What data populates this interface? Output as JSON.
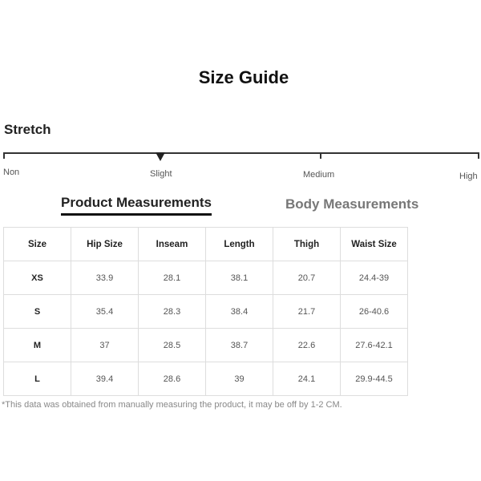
{
  "title": "Size Guide",
  "stretch": {
    "label": "Stretch",
    "levels": [
      "Non",
      "Slight",
      "Medium",
      "High"
    ],
    "selected": "Slight"
  },
  "tabs": {
    "product": "Product Measurements",
    "body": "Body Measurements",
    "active": "Product Measurements"
  },
  "table": {
    "headers": [
      "Size",
      "Hip Size",
      "Inseam",
      "Length",
      "Thigh",
      "Waist Size"
    ],
    "rows": [
      [
        "XS",
        "33.9",
        "28.1",
        "38.1",
        "20.7",
        "24.4-39"
      ],
      [
        "S",
        "35.4",
        "28.3",
        "38.4",
        "21.7",
        "26-40.6"
      ],
      [
        "M",
        "37",
        "28.5",
        "38.7",
        "22.6",
        "27.6-42.1"
      ],
      [
        "L",
        "39.4",
        "28.6",
        "39",
        "24.1",
        "29.9-44.5"
      ]
    ]
  },
  "note": "*This data was obtained from manually measuring the product, it may be off by 1-2 CM."
}
